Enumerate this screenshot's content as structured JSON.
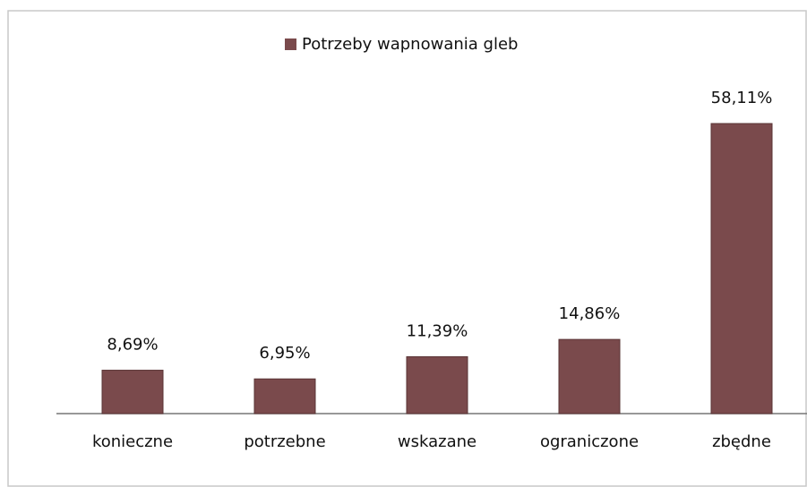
{
  "chart_data": {
    "type": "bar",
    "legend": "Potrzeby wapnowania gleb",
    "categories": [
      "konieczne",
      "potrzebne",
      "wskazane",
      "ograniczone",
      "zbędne"
    ],
    "series": [
      {
        "name": "Potrzeby wapnowania gleb",
        "color": "#7a4a4c",
        "values": [
          8.69,
          6.95,
          11.39,
          14.86,
          58.11
        ],
        "value_labels": [
          "8,69%",
          "6,95%",
          "11,39%",
          "14,86%",
          "58,11%"
        ]
      }
    ]
  }
}
